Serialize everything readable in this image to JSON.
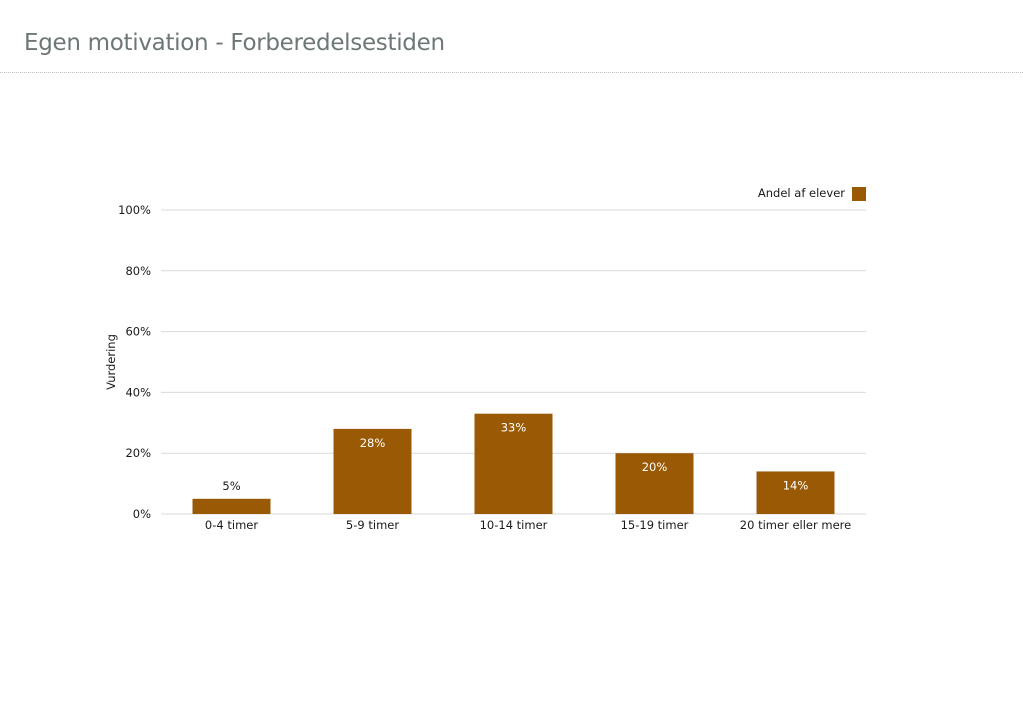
{
  "page": {
    "title": "Egen motivation - Forberedelsestiden"
  },
  "chart_data": {
    "type": "bar",
    "title": "",
    "xlabel": "",
    "ylabel": "Vurdering",
    "ylim": [
      0,
      100
    ],
    "y_ticks": [
      0,
      20,
      40,
      60,
      80,
      100
    ],
    "y_tick_labels": [
      "0%",
      "20%",
      "40%",
      "60%",
      "80%",
      "100%"
    ],
    "categories": [
      "0-4 timer",
      "5-9 timer",
      "10-14 timer",
      "15-19 timer",
      "20 timer eller mere"
    ],
    "series": [
      {
        "name": "Andel af elever",
        "color": "#9a5a05",
        "values": [
          5,
          28,
          33,
          20,
          14
        ],
        "data_labels": [
          "5%",
          "28%",
          "33%",
          "20%",
          "14%"
        ]
      }
    ],
    "grid": true,
    "legend": "top-right"
  }
}
